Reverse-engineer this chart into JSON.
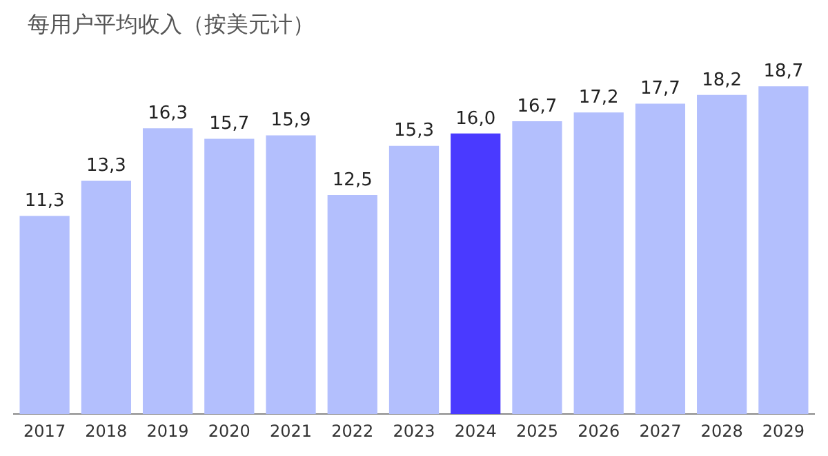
{
  "chart_data": {
    "type": "bar",
    "title": "每用户平均收入（按美元计）",
    "categories": [
      "2017",
      "2018",
      "2019",
      "2020",
      "2021",
      "2022",
      "2023",
      "2024",
      "2025",
      "2026",
      "2027",
      "2028",
      "2029"
    ],
    "values": [
      11.3,
      13.3,
      16.3,
      15.7,
      15.9,
      12.5,
      15.3,
      16.0,
      16.7,
      17.2,
      17.7,
      18.2,
      18.7
    ],
    "value_labels": [
      "11,3",
      "13,3",
      "16,3",
      "15,7",
      "15,9",
      "12,5",
      "15,3",
      "16,0",
      "16,7",
      "17,2",
      "17,7",
      "18,2",
      "18,7"
    ],
    "colors": [
      "#b3bffd",
      "#b3bffd",
      "#b3bffd",
      "#b3bffd",
      "#b3bffd",
      "#b3bffd",
      "#b3bffd",
      "#4a3aff",
      "#b3bffd",
      "#b3bffd",
      "#b3bffd",
      "#b3bffd",
      "#b3bffd"
    ],
    "grid": false,
    "legend": false
  }
}
